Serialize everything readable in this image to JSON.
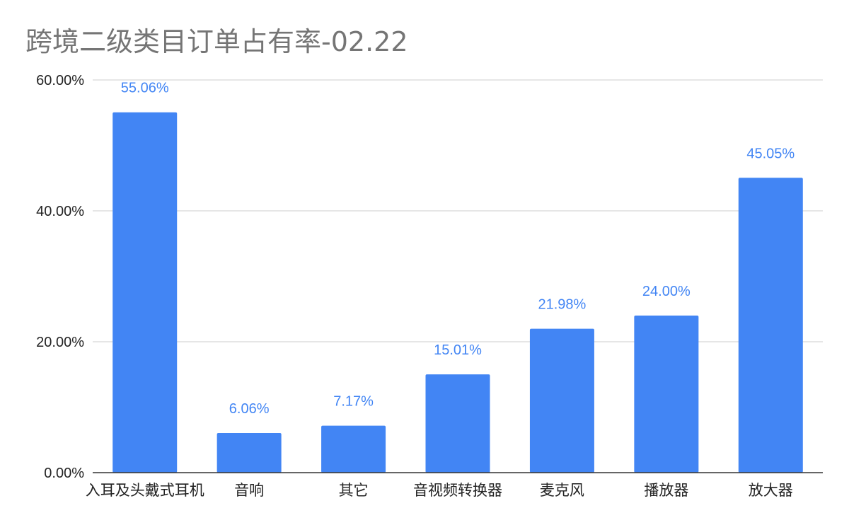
{
  "chart_data": {
    "type": "bar",
    "title": "跨境二级类目订单占有率-02.22",
    "xlabel": "",
    "ylabel": "",
    "categories": [
      "入耳及头戴式耳机",
      "音响",
      "其它",
      "音视频转换器",
      "麦克风",
      "播放器",
      "放大器"
    ],
    "values": [
      55.06,
      6.06,
      7.17,
      15.01,
      21.98,
      24.0,
      45.05
    ],
    "data_labels": [
      "55.06%",
      "6.06%",
      "7.17%",
      "15.01%",
      "21.98%",
      "24.00%",
      "45.05%"
    ],
    "ylim": [
      0,
      60
    ],
    "yticks": [
      0,
      20,
      40,
      60
    ],
    "ytick_labels": [
      "0.00%",
      "20.00%",
      "40.00%",
      "60.00%"
    ],
    "grid": true,
    "legend": "none",
    "colors": {
      "bar": "#4285f4",
      "data_label": "#4285f4",
      "grid": "#cccccc",
      "axis": "#333333",
      "title": "#757575"
    }
  }
}
